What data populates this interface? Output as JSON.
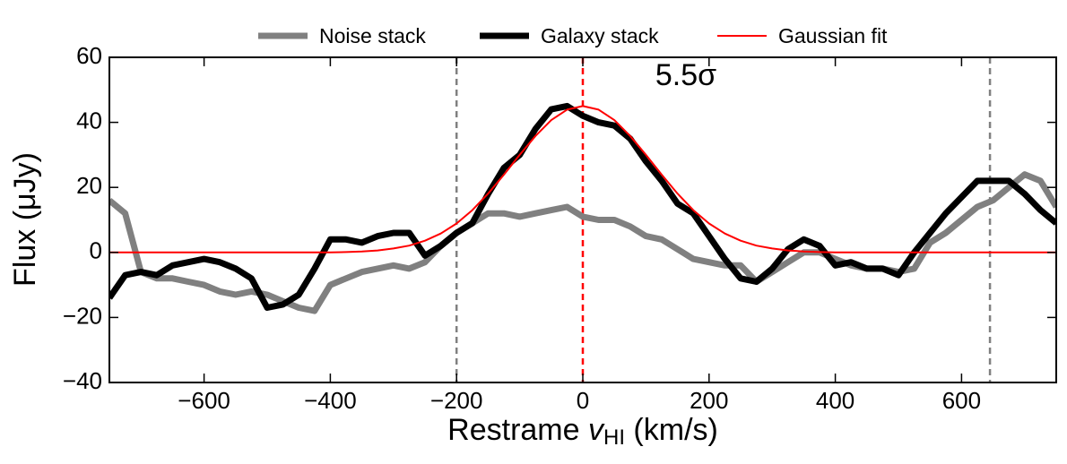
{
  "chart_data": {
    "type": "line",
    "x_label": [
      "Restrame ",
      "v",
      "HI",
      " (km/s)"
    ],
    "y_label": "Flux (μJy)",
    "annotation": "5.5σ",
    "x": [
      -750,
      -725,
      -700,
      -675,
      -650,
      -625,
      -600,
      -575,
      -550,
      -525,
      -500,
      -475,
      -450,
      -425,
      -400,
      -375,
      -350,
      -325,
      -300,
      -275,
      -250,
      -225,
      -200,
      -175,
      -150,
      -125,
      -100,
      -75,
      -50,
      -25,
      0,
      25,
      50,
      75,
      100,
      125,
      150,
      175,
      200,
      225,
      250,
      275,
      300,
      325,
      350,
      375,
      400,
      425,
      450,
      475,
      500,
      525,
      550,
      575,
      600,
      625,
      650,
      675,
      700,
      725,
      750
    ],
    "series": [
      {
        "name": "Noise stack",
        "color": "#808080",
        "width": 7,
        "values": [
          16,
          12,
          -6,
          -8,
          -8,
          -9,
          -10,
          -12,
          -13,
          -12,
          -13,
          -15,
          -17,
          -18,
          -10,
          -8,
          -6,
          -5,
          -4,
          -5,
          -3,
          2,
          6,
          9,
          12,
          12,
          11,
          12,
          13,
          14,
          11,
          10,
          10,
          8,
          5,
          4,
          1,
          -2,
          -3,
          -4,
          -4,
          -9,
          -6,
          -3,
          0,
          0,
          -2,
          -4,
          -5,
          -5,
          -6,
          -5,
          3,
          6,
          10,
          14,
          16,
          20,
          24,
          22,
          14
        ]
      },
      {
        "name": "Galaxy stack",
        "color": "#000000",
        "width": 7,
        "values": [
          -14,
          -7,
          -6,
          -7,
          -4,
          -3,
          -2,
          -3,
          -5,
          -8,
          -17,
          -16,
          -13,
          -5,
          4,
          4,
          3,
          5,
          6,
          6,
          -1,
          2,
          6,
          9,
          18,
          26,
          30,
          38,
          44,
          45,
          42,
          40,
          39,
          35,
          28,
          22,
          15,
          12,
          5,
          -2,
          -8,
          -9,
          -5,
          1,
          4,
          2,
          -4,
          -3,
          -5,
          -5,
          -7,
          0,
          6,
          12,
          17,
          22,
          22,
          22,
          18,
          13,
          9
        ]
      },
      {
        "name": "Gaussian fit",
        "color": "#ff0000",
        "width": 2,
        "values": [
          0,
          0,
          0,
          0,
          0,
          0,
          0,
          0,
          0,
          0,
          0,
          0,
          0,
          0,
          0,
          0.1,
          0.3,
          0.6,
          1.2,
          2.1,
          3.6,
          5.8,
          8.9,
          13.0,
          18.1,
          23.9,
          30.0,
          35.8,
          40.7,
          43.9,
          45,
          43.9,
          40.7,
          35.8,
          30.0,
          23.9,
          18.1,
          13.0,
          8.9,
          5.8,
          3.6,
          2.1,
          1.2,
          0.6,
          0.3,
          0.1,
          0,
          0,
          0,
          0,
          0,
          0,
          0,
          0,
          0,
          0,
          0,
          0,
          0,
          0,
          0
        ]
      }
    ],
    "vlines": [
      {
        "x": -200,
        "color": "#808080"
      },
      {
        "x": 0,
        "color": "#ff0000"
      },
      {
        "x": 645,
        "color": "#808080"
      }
    ],
    "xlim": [
      -750,
      750
    ],
    "ylim": [
      -40,
      60
    ],
    "xticks": [
      {
        "value": -600,
        "label": "−600"
      },
      {
        "value": -400,
        "label": "−400"
      },
      {
        "value": -200,
        "label": "−200"
      },
      0,
      200,
      400,
      600
    ],
    "yticks": [
      {
        "value": -40,
        "label": "−40"
      },
      {
        "value": -20,
        "label": "−20"
      },
      0,
      20,
      40,
      60
    ],
    "legend": "top"
  }
}
